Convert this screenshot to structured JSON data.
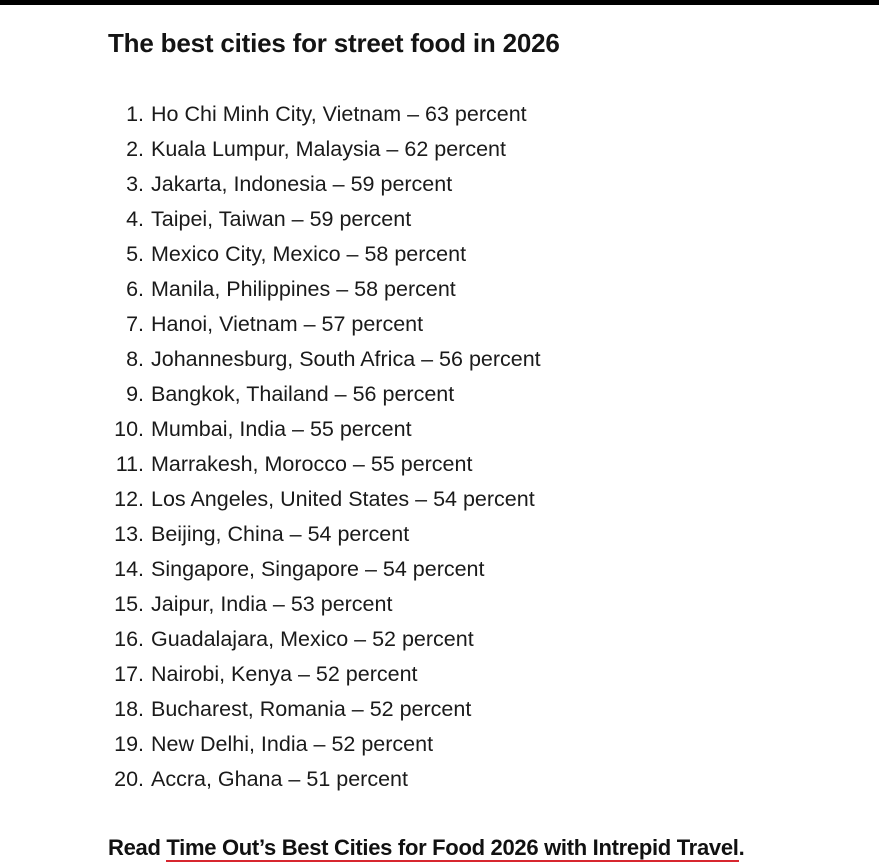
{
  "article": {
    "heading": "The best cities for street food in 2026",
    "ranking": [
      {
        "rank": "1.",
        "text": "Ho Chi Minh City, Vietnam – 63 percent"
      },
      {
        "rank": "2.",
        "text": "Kuala Lumpur, Malaysia – 62 percent"
      },
      {
        "rank": "3.",
        "text": "Jakarta, Indonesia – 59 percent"
      },
      {
        "rank": "4.",
        "text": "Taipei, Taiwan – 59 percent"
      },
      {
        "rank": "5.",
        "text": "Mexico City, Mexico – 58 percent"
      },
      {
        "rank": "6.",
        "text": "Manila, Philippines – 58 percent"
      },
      {
        "rank": "7.",
        "text": "Hanoi, Vietnam – 57 percent"
      },
      {
        "rank": "8.",
        "text": "Johannesburg, South Africa – 56 percent"
      },
      {
        "rank": "9.",
        "text": "Bangkok, Thailand – 56 percent"
      },
      {
        "rank": "10.",
        "text": "Mumbai, India – 55 percent"
      },
      {
        "rank": "11.",
        "text": "Marrakesh, Morocco – 55 percent"
      },
      {
        "rank": "12.",
        "text": "Los Angeles, United States – 54 percent"
      },
      {
        "rank": "13.",
        "text": "Beijing, China – 54 percent"
      },
      {
        "rank": "14.",
        "text": "Singapore, Singapore – 54 percent"
      },
      {
        "rank": "15.",
        "text": "Jaipur, India – 53 percent"
      },
      {
        "rank": "16.",
        "text": "Guadalajara, Mexico – 52 percent"
      },
      {
        "rank": "17.",
        "text": "Nairobi, Kenya – 52 percent"
      },
      {
        "rank": "18.",
        "text": "Bucharest, Romania – 52 percent"
      },
      {
        "rank": "19.",
        "text": "New Delhi, India – 52 percent"
      },
      {
        "rank": "20.",
        "text": "Accra, Ghana – 51 percent"
      }
    ],
    "read_more": {
      "prefix": "Read ",
      "link_text": "Time Out’s Best Cities for Food 2026 with Intrepid Travel",
      "suffix": "."
    }
  },
  "colors": {
    "top_rule": "#000000",
    "text": "#1a1a1a",
    "link_underline": "#d7262f"
  }
}
